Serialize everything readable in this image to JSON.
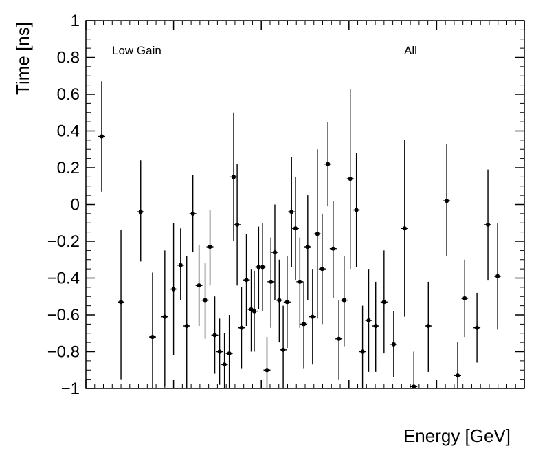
{
  "chart": {
    "frame_color": "#000000",
    "marker_color": "#000000",
    "background": "#ffffff",
    "y_axis": {
      "label": "Time [ns]",
      "min": -1,
      "max": 1,
      "major_tick_step": 0.2,
      "minor_tick_step": 0.05,
      "tick_labels": [
        "1",
        "0.8",
        "0.6",
        "0.4",
        "0.2",
        "0",
        "−0.2",
        "−0.4",
        "−0.6",
        "−0.8",
        "−1"
      ]
    },
    "x_axis": {
      "label": "Energy [GeV]",
      "tick_labels_visible": false
    },
    "annotations": {
      "left": "Low Gain",
      "right": "All"
    }
  },
  "chart_data": {
    "type": "scatter",
    "title": "",
    "xlabel": "Energy [GeV]",
    "ylabel": "Time [ns]",
    "ylim": [
      -1,
      1
    ],
    "x_tick_labels_visible": false,
    "series_name": "All (Low Gain)",
    "point_format": [
      "x_frac",
      "y",
      "y_err_low",
      "y_err_high"
    ],
    "points": [
      [
        0.036,
        0.37,
        0.07,
        0.67
      ],
      [
        0.08,
        -0.53,
        -0.95,
        -0.14
      ],
      [
        0.125,
        -0.04,
        -0.31,
        0.24
      ],
      [
        0.152,
        -0.72,
        -1.0,
        -0.37
      ],
      [
        0.18,
        -0.61,
        -0.99,
        -0.25
      ],
      [
        0.2,
        -0.46,
        -0.82,
        -0.1
      ],
      [
        0.216,
        -0.33,
        -0.52,
        -0.13
      ],
      [
        0.23,
        -0.66,
        -1.0,
        -0.28
      ],
      [
        0.244,
        -0.05,
        -0.26,
        0.16
      ],
      [
        0.258,
        -0.44,
        -0.66,
        -0.22
      ],
      [
        0.272,
        -0.52,
        -0.73,
        -0.32
      ],
      [
        0.283,
        -0.23,
        -0.44,
        -0.03
      ],
      [
        0.294,
        -0.71,
        -0.92,
        -0.5
      ],
      [
        0.305,
        -0.8,
        -0.98,
        -0.62
      ],
      [
        0.316,
        -0.87,
        -1.0,
        -0.7
      ],
      [
        0.327,
        -0.81,
        -1.0,
        -0.6
      ],
      [
        0.337,
        0.15,
        -0.2,
        0.5
      ],
      [
        0.345,
        -0.11,
        -0.44,
        0.22
      ],
      [
        0.355,
        -0.67,
        -0.89,
        -0.45
      ],
      [
        0.366,
        -0.41,
        -0.66,
        -0.16
      ],
      [
        0.377,
        -0.57,
        -0.8,
        -0.35
      ],
      [
        0.384,
        -0.58,
        -0.8,
        -0.36
      ],
      [
        0.394,
        -0.34,
        -0.57,
        -0.12
      ],
      [
        0.403,
        -0.34,
        -0.58,
        -0.1
      ],
      [
        0.413,
        -0.9,
        -1.0,
        -0.72
      ],
      [
        0.422,
        -0.42,
        -0.67,
        -0.18
      ],
      [
        0.431,
        -0.26,
        -0.52,
        0.0
      ],
      [
        0.441,
        -0.52,
        -0.75,
        -0.3
      ],
      [
        0.45,
        -0.79,
        -1.0,
        -0.55
      ],
      [
        0.459,
        -0.53,
        -0.78,
        -0.28
      ],
      [
        0.469,
        -0.04,
        -0.34,
        0.26
      ],
      [
        0.478,
        -0.13,
        -0.41,
        0.15
      ],
      [
        0.488,
        -0.42,
        -0.67,
        -0.18
      ],
      [
        0.497,
        -0.65,
        -0.89,
        -0.42
      ],
      [
        0.506,
        -0.23,
        -0.52,
        0.05
      ],
      [
        0.517,
        -0.61,
        -0.87,
        -0.35
      ],
      [
        0.528,
        -0.16,
        -0.62,
        0.3
      ],
      [
        0.539,
        -0.35,
        -0.65,
        -0.05
      ],
      [
        0.552,
        0.22,
        -0.01,
        0.45
      ],
      [
        0.564,
        -0.24,
        -0.51,
        0.02
      ],
      [
        0.577,
        -0.73,
        -0.95,
        -0.52
      ],
      [
        0.589,
        -0.52,
        -0.77,
        -0.28
      ],
      [
        0.603,
        0.14,
        -0.35,
        0.63
      ],
      [
        0.617,
        -0.03,
        -0.34,
        0.28
      ],
      [
        0.631,
        -0.8,
        -1.0,
        -0.55
      ],
      [
        0.645,
        -0.63,
        -0.91,
        -0.35
      ],
      [
        0.661,
        -0.66,
        -0.91,
        -0.42
      ],
      [
        0.68,
        -0.53,
        -0.81,
        -0.25
      ],
      [
        0.702,
        -0.76,
        -0.94,
        -0.58
      ],
      [
        0.727,
        -0.13,
        -0.61,
        0.35
      ],
      [
        0.748,
        -0.99,
        -1.0,
        -0.8
      ],
      [
        0.781,
        -0.66,
        -0.91,
        -0.42
      ],
      [
        0.823,
        0.02,
        -0.28,
        0.33
      ],
      [
        0.848,
        -0.93,
        -1.0,
        -0.75
      ],
      [
        0.864,
        -0.51,
        -0.72,
        -0.3
      ],
      [
        0.892,
        -0.67,
        -0.86,
        -0.48
      ],
      [
        0.917,
        -0.11,
        -0.41,
        0.19
      ],
      [
        0.939,
        -0.39,
        -0.68,
        -0.1
      ]
    ]
  }
}
